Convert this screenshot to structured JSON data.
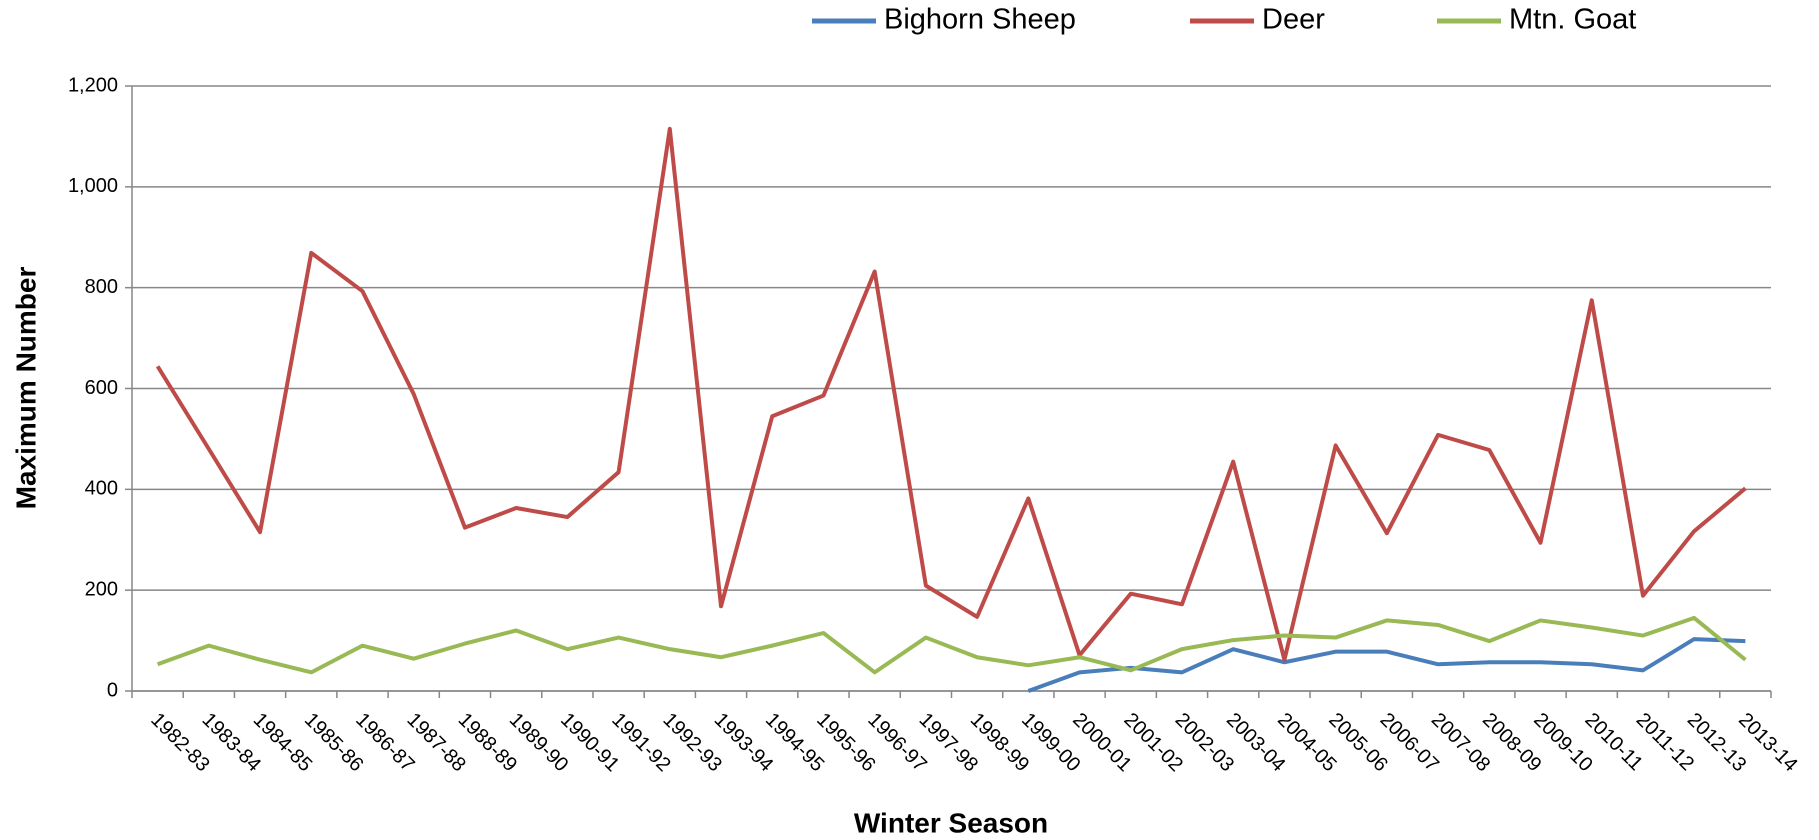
{
  "chart_data": {
    "type": "line",
    "x_label": "Winter Season",
    "y_label": "Maximum Number",
    "categories": [
      "1982-83",
      "1983-84",
      "1984-85",
      "1985-86",
      "1986-87",
      "1987-88",
      "1988-89",
      "1989-90",
      "1990-91",
      "1991-92",
      "1992-93",
      "1993-94",
      "1994-95",
      "1995-96",
      "1996-97",
      "1997-98",
      "1998-99",
      "1999-00",
      "2000-01",
      "2001-02",
      "2002-03",
      "2003-04",
      "2004-05",
      "2005-06",
      "2006-07",
      "2007-08",
      "2008-09",
      "2009-10",
      "2010-11",
      "2011-12",
      "2012-13",
      "2013-14"
    ],
    "series": [
      {
        "name": "Bighorn Sheep",
        "color": "#4a7ebb",
        "values": [
          null,
          null,
          null,
          null,
          null,
          null,
          null,
          null,
          null,
          null,
          null,
          null,
          null,
          null,
          null,
          null,
          null,
          0,
          37,
          46,
          37,
          83,
          57,
          78,
          78,
          53,
          57,
          57,
          53,
          41,
          103,
          99
        ]
      },
      {
        "name": "Deer",
        "color": "#be4b48",
        "values": [
          644,
          480,
          315,
          869,
          793,
          589,
          324,
          363,
          345,
          434,
          1115,
          168,
          545,
          586,
          832,
          209,
          147,
          382,
          71,
          193,
          172,
          455,
          62,
          487,
          313,
          508,
          478,
          294,
          775,
          189,
          317,
          402
        ]
      },
      {
        "name": "Mtn. Goat",
        "color": "#98b954",
        "values": [
          53,
          90,
          62,
          37,
          90,
          64,
          94,
          120,
          83,
          106,
          83,
          67,
          90,
          115,
          37,
          106,
          67,
          51,
          67,
          41,
          83,
          101,
          110,
          106,
          140,
          131,
          99,
          140,
          126,
          110,
          145,
          62
        ]
      }
    ],
    "ylim": [
      0,
      1200
    ],
    "yticks": [
      0,
      200,
      400,
      600,
      800,
      {
        "value": 1000,
        "label": "1,000"
      },
      {
        "value": 1200,
        "label": "1,200"
      }
    ],
    "grid": true,
    "legend_position": "top"
  }
}
